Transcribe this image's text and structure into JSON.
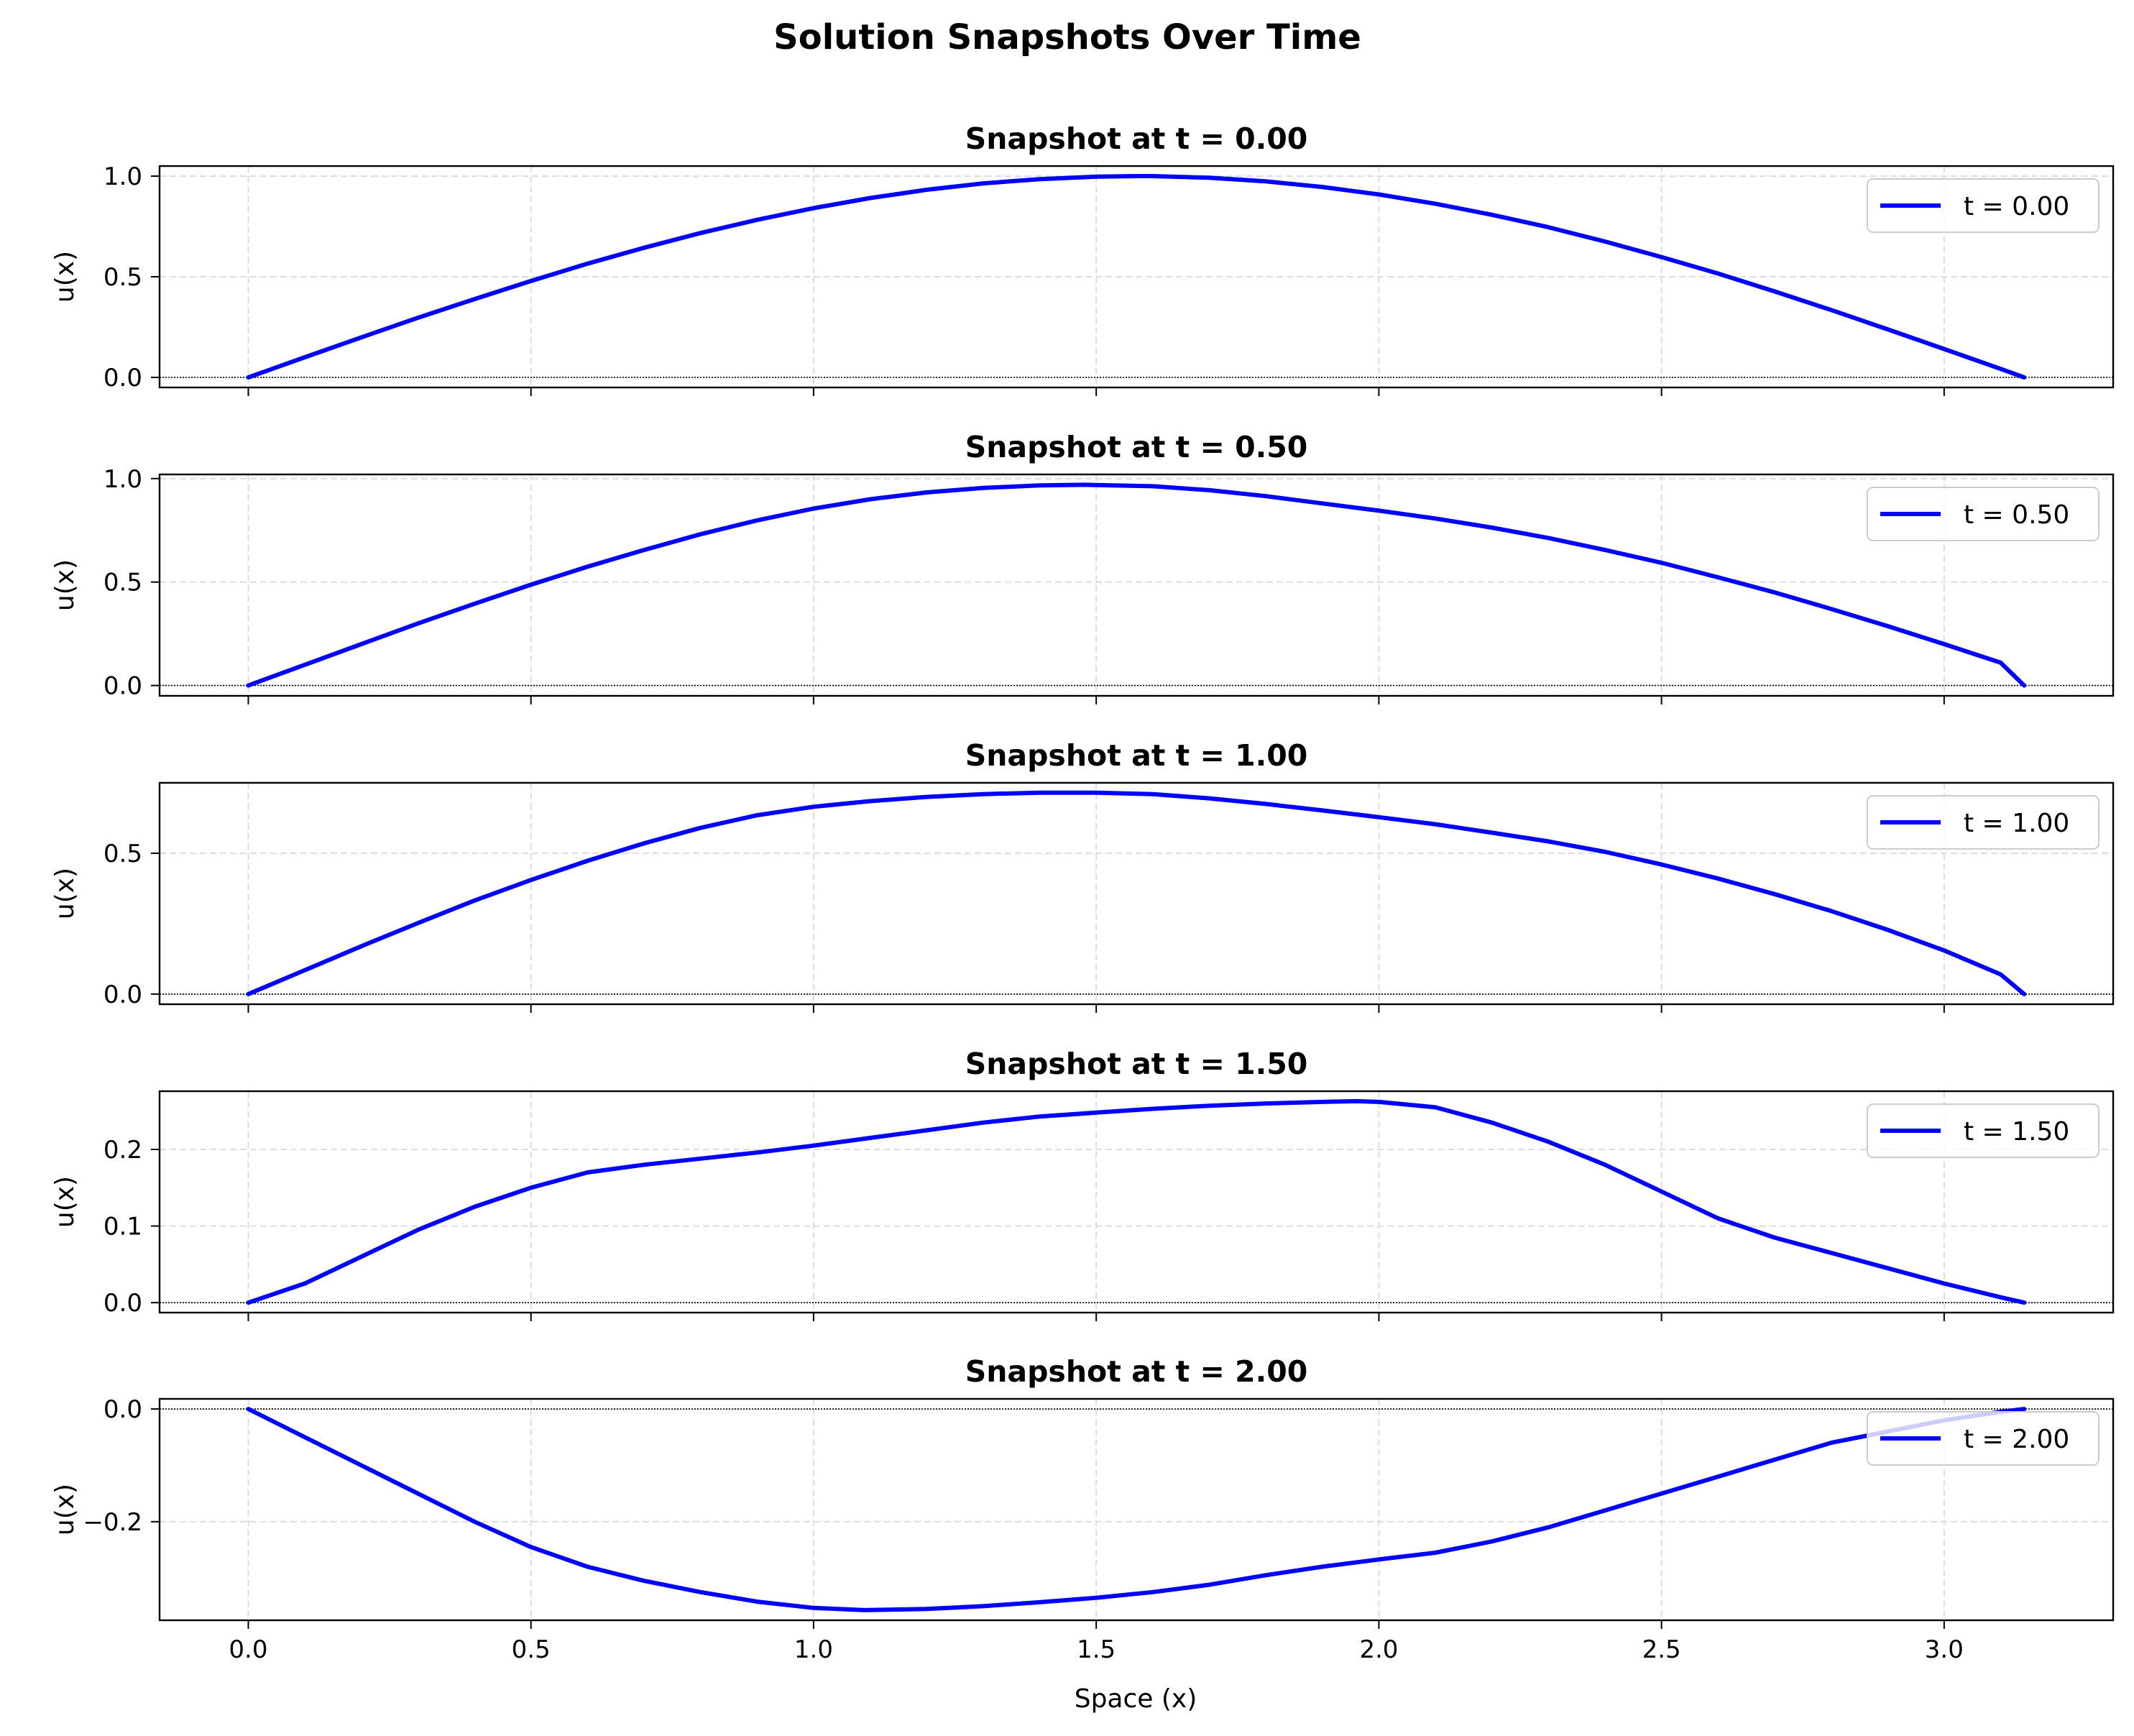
{
  "figure": {
    "title": "Solution Snapshots Over Time",
    "xlabel": "Space (x)"
  },
  "colors": {
    "series": "#0000ff",
    "grid": "#dddddd",
    "baseline": "#000000",
    "axes": "#000000"
  },
  "chart_data": [
    {
      "type": "line",
      "title": "Snapshot at t = 0.00",
      "ylabel": "u(x)",
      "xlabel": "",
      "xlim": [
        -0.157,
        3.299
      ],
      "ylim": [
        -0.05,
        1.05
      ],
      "xticks": [
        0.0,
        0.5,
        1.0,
        1.5,
        2.0,
        2.5,
        3.0
      ],
      "yticks": [
        0.0,
        0.5,
        1.0
      ],
      "ytick_labels": [
        "0.0",
        "0.5",
        "1.0"
      ],
      "grid": true,
      "legend_position": "top-right",
      "baseline_y": 0,
      "series": [
        {
          "name": "t = 0.00",
          "x": [
            0.0,
            0.1,
            0.2,
            0.3,
            0.4,
            0.5,
            0.6,
            0.7,
            0.8,
            0.9,
            1.0,
            1.1,
            1.2,
            1.3,
            1.4,
            1.5,
            1.571,
            1.6,
            1.7,
            1.8,
            1.9,
            2.0,
            2.1,
            2.2,
            2.3,
            2.4,
            2.5,
            2.6,
            2.7,
            2.8,
            2.9,
            3.0,
            3.1,
            3.1416
          ],
          "y": [
            0.0,
            0.1,
            0.199,
            0.296,
            0.389,
            0.479,
            0.565,
            0.644,
            0.717,
            0.783,
            0.841,
            0.891,
            0.932,
            0.964,
            0.985,
            0.997,
            1.0,
            1.0,
            0.992,
            0.974,
            0.946,
            0.909,
            0.863,
            0.808,
            0.746,
            0.675,
            0.598,
            0.516,
            0.427,
            0.335,
            0.239,
            0.141,
            0.042,
            0.0
          ]
        }
      ]
    },
    {
      "type": "line",
      "title": "Snapshot at t = 0.50",
      "ylabel": "u(x)",
      "xlabel": "",
      "xlim": [
        -0.157,
        3.299
      ],
      "ylim": [
        -0.05,
        1.02
      ],
      "xticks": [
        0.0,
        0.5,
        1.0,
        1.5,
        2.0,
        2.5,
        3.0
      ],
      "yticks": [
        0.0,
        0.5,
        1.0
      ],
      "ytick_labels": [
        "0.0",
        "0.5",
        "1.0"
      ],
      "grid": true,
      "legend_position": "top-right",
      "baseline_y": 0,
      "series": [
        {
          "name": "t = 0.50",
          "x": [
            0.0,
            0.1,
            0.2,
            0.3,
            0.4,
            0.5,
            0.6,
            0.7,
            0.8,
            0.9,
            1.0,
            1.1,
            1.2,
            1.3,
            1.4,
            1.48,
            1.6,
            1.7,
            1.8,
            1.9,
            2.0,
            2.1,
            2.2,
            2.3,
            2.4,
            2.5,
            2.6,
            2.7,
            2.8,
            2.9,
            3.0,
            3.1,
            3.1416
          ],
          "y": [
            0.0,
            0.1,
            0.2,
            0.3,
            0.395,
            0.487,
            0.574,
            0.655,
            0.731,
            0.798,
            0.855,
            0.9,
            0.933,
            0.955,
            0.967,
            0.97,
            0.963,
            0.944,
            0.915,
            0.88,
            0.845,
            0.807,
            0.763,
            0.713,
            0.655,
            0.593,
            0.523,
            0.45,
            0.37,
            0.287,
            0.2,
            0.11,
            0.0
          ]
        }
      ]
    },
    {
      "type": "line",
      "title": "Snapshot at t = 1.00",
      "ylabel": "u(x)",
      "xlabel": "",
      "xlim": [
        -0.157,
        3.299
      ],
      "ylim": [
        -0.036,
        0.75
      ],
      "xticks": [
        0.0,
        0.5,
        1.0,
        1.5,
        2.0,
        2.5,
        3.0
      ],
      "yticks": [
        0.0,
        0.5
      ],
      "ytick_labels": [
        "0.0",
        "0.5"
      ],
      "grid": true,
      "legend_position": "top-right",
      "baseline_y": 0,
      "series": [
        {
          "name": "t = 1.00",
          "x": [
            0.0,
            0.1,
            0.2,
            0.3,
            0.4,
            0.5,
            0.6,
            0.7,
            0.8,
            0.9,
            1.0,
            1.1,
            1.2,
            1.3,
            1.4,
            1.5,
            1.6,
            1.7,
            1.8,
            1.9,
            2.0,
            2.1,
            2.2,
            2.3,
            2.4,
            2.5,
            2.6,
            2.7,
            2.8,
            2.9,
            3.0,
            3.1,
            3.1416
          ],
          "y": [
            0.0,
            0.085,
            0.17,
            0.252,
            0.332,
            0.405,
            0.473,
            0.535,
            0.59,
            0.635,
            0.665,
            0.685,
            0.7,
            0.71,
            0.715,
            0.715,
            0.71,
            0.695,
            0.675,
            0.652,
            0.628,
            0.603,
            0.573,
            0.542,
            0.505,
            0.46,
            0.41,
            0.355,
            0.295,
            0.228,
            0.155,
            0.07,
            0.0
          ]
        }
      ]
    },
    {
      "type": "line",
      "title": "Snapshot at t = 1.50",
      "ylabel": "u(x)",
      "xlabel": "",
      "xlim": [
        -0.157,
        3.299
      ],
      "ylim": [
        -0.013,
        0.276
      ],
      "xticks": [
        0.0,
        0.5,
        1.0,
        1.5,
        2.0,
        2.5,
        3.0
      ],
      "yticks": [
        0.0,
        0.1,
        0.2
      ],
      "ytick_labels": [
        "0.0",
        "0.1",
        "0.2"
      ],
      "grid": true,
      "legend_position": "top-right",
      "baseline_y": 0,
      "series": [
        {
          "name": "t = 1.50",
          "x": [
            0.0,
            0.1,
            0.2,
            0.3,
            0.4,
            0.5,
            0.55,
            0.6,
            0.7,
            0.8,
            0.9,
            1.0,
            1.1,
            1.2,
            1.3,
            1.4,
            1.5,
            1.6,
            1.7,
            1.8,
            1.9,
            1.96,
            2.0,
            2.1,
            2.2,
            2.3,
            2.4,
            2.5,
            2.6,
            2.7,
            2.8,
            2.9,
            3.0,
            3.1,
            3.1416
          ],
          "y": [
            0.0,
            0.025,
            0.06,
            0.095,
            0.125,
            0.15,
            0.16,
            0.17,
            0.18,
            0.188,
            0.196,
            0.205,
            0.215,
            0.225,
            0.235,
            0.243,
            0.248,
            0.253,
            0.257,
            0.26,
            0.262,
            0.263,
            0.262,
            0.255,
            0.235,
            0.21,
            0.18,
            0.145,
            0.11,
            0.085,
            0.065,
            0.045,
            0.025,
            0.007,
            0.0
          ]
        }
      ]
    },
    {
      "type": "line",
      "title": "Snapshot at t = 2.00",
      "ylabel": "u(x)",
      "xlabel": "Space (x)",
      "xlim": [
        -0.157,
        3.299
      ],
      "ylim": [
        -0.375,
        0.018
      ],
      "xticks": [
        0.0,
        0.5,
        1.0,
        1.5,
        2.0,
        2.5,
        3.0
      ],
      "xtick_labels": [
        "0.0",
        "0.5",
        "1.0",
        "1.5",
        "2.0",
        "2.5",
        "3.0"
      ],
      "yticks": [
        0.0,
        -0.2
      ],
      "ytick_labels": [
        "0.0",
        "−0.2"
      ],
      "grid": true,
      "legend_position": "top-right",
      "baseline_y": 0,
      "series": [
        {
          "name": "t = 2.00",
          "x": [
            0.0,
            0.1,
            0.2,
            0.3,
            0.4,
            0.5,
            0.6,
            0.7,
            0.8,
            0.9,
            1.0,
            1.09,
            1.2,
            1.3,
            1.4,
            1.5,
            1.6,
            1.7,
            1.8,
            1.9,
            2.0,
            2.1,
            2.2,
            2.3,
            2.4,
            2.5,
            2.6,
            2.7,
            2.8,
            2.9,
            3.0,
            3.1,
            3.1416
          ],
          "y": [
            0.0,
            -0.05,
            -0.1,
            -0.15,
            -0.2,
            -0.245,
            -0.28,
            -0.305,
            -0.325,
            -0.342,
            -0.353,
            -0.357,
            -0.355,
            -0.35,
            -0.343,
            -0.335,
            -0.325,
            -0.312,
            -0.295,
            -0.28,
            -0.267,
            -0.255,
            -0.235,
            -0.21,
            -0.18,
            -0.15,
            -0.12,
            -0.09,
            -0.06,
            -0.04,
            -0.02,
            -0.005,
            0.0
          ]
        }
      ]
    }
  ]
}
